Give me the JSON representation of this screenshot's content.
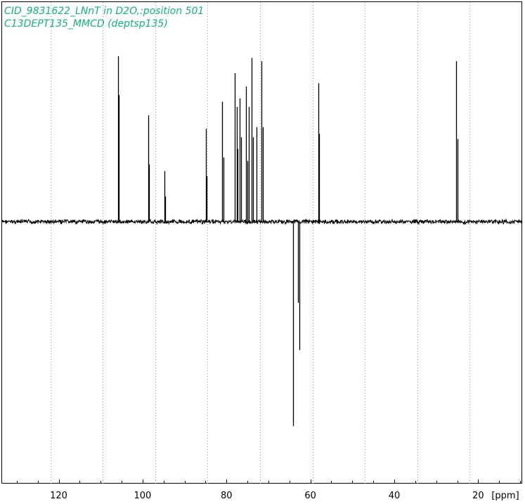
{
  "titles": {
    "line1": "CID_9831622_LNnT in D2O,:position 501",
    "line2": "C13DEPT135_MMCD (deptsp135)"
  },
  "colors": {
    "title": "#17b07e",
    "spectrum": "#000000",
    "grid": "#999999"
  },
  "chart_data": {
    "type": "line",
    "title": "CID_9831622_LNnT in D2O,:position 501",
    "subtitle": "C13DEPT135_MMCD (deptsp135)",
    "xlabel": "[ppm]",
    "ylabel": "",
    "x_reversed": true,
    "xlim": [
      133.5,
      9.5
    ],
    "ylim": [
      -1.55,
      1.3
    ],
    "x_ticks": [
      120,
      100,
      80,
      60,
      40,
      20
    ],
    "x_tick_labels": [
      "120",
      "100",
      "80",
      "60",
      "40",
      "20"
    ],
    "minor_tick_step": 5,
    "grid": "vertical dotted",
    "peaks": [
      {
        "ppm": 105.9,
        "intensity": 0.98
      },
      {
        "ppm": 105.7,
        "intensity": 0.75
      },
      {
        "ppm": 98.7,
        "intensity": 0.63
      },
      {
        "ppm": 98.5,
        "intensity": 0.34
      },
      {
        "ppm": 94.8,
        "intensity": 0.3
      },
      {
        "ppm": 94.6,
        "intensity": 0.15
      },
      {
        "ppm": 84.9,
        "intensity": 0.55
      },
      {
        "ppm": 84.7,
        "intensity": 0.27
      },
      {
        "ppm": 81.0,
        "intensity": 0.71
      },
      {
        "ppm": 80.7,
        "intensity": 0.38
      },
      {
        "ppm": 78.0,
        "intensity": 0.88
      },
      {
        "ppm": 77.6,
        "intensity": 0.68
      },
      {
        "ppm": 77.3,
        "intensity": 0.43
      },
      {
        "ppm": 76.9,
        "intensity": 0.73
      },
      {
        "ppm": 76.6,
        "intensity": 0.5
      },
      {
        "ppm": 75.4,
        "intensity": 0.8
      },
      {
        "ppm": 75.1,
        "intensity": 0.36
      },
      {
        "ppm": 74.7,
        "intensity": 0.68
      },
      {
        "ppm": 74.0,
        "intensity": 0.97
      },
      {
        "ppm": 73.7,
        "intensity": 0.5
      },
      {
        "ppm": 72.9,
        "intensity": 0.56
      },
      {
        "ppm": 71.6,
        "intensity": 0.95
      },
      {
        "ppm": 71.4,
        "intensity": 0.56
      },
      {
        "ppm": 64.2,
        "intensity": -1.21
      },
      {
        "ppm": 62.9,
        "intensity": -0.48
      },
      {
        "ppm": 62.6,
        "intensity": -0.76
      },
      {
        "ppm": 58.1,
        "intensity": 0.82
      },
      {
        "ppm": 57.9,
        "intensity": 0.52
      },
      {
        "ppm": 25.2,
        "intensity": 0.95
      },
      {
        "ppm": 25.0,
        "intensity": 0.49
      }
    ]
  }
}
